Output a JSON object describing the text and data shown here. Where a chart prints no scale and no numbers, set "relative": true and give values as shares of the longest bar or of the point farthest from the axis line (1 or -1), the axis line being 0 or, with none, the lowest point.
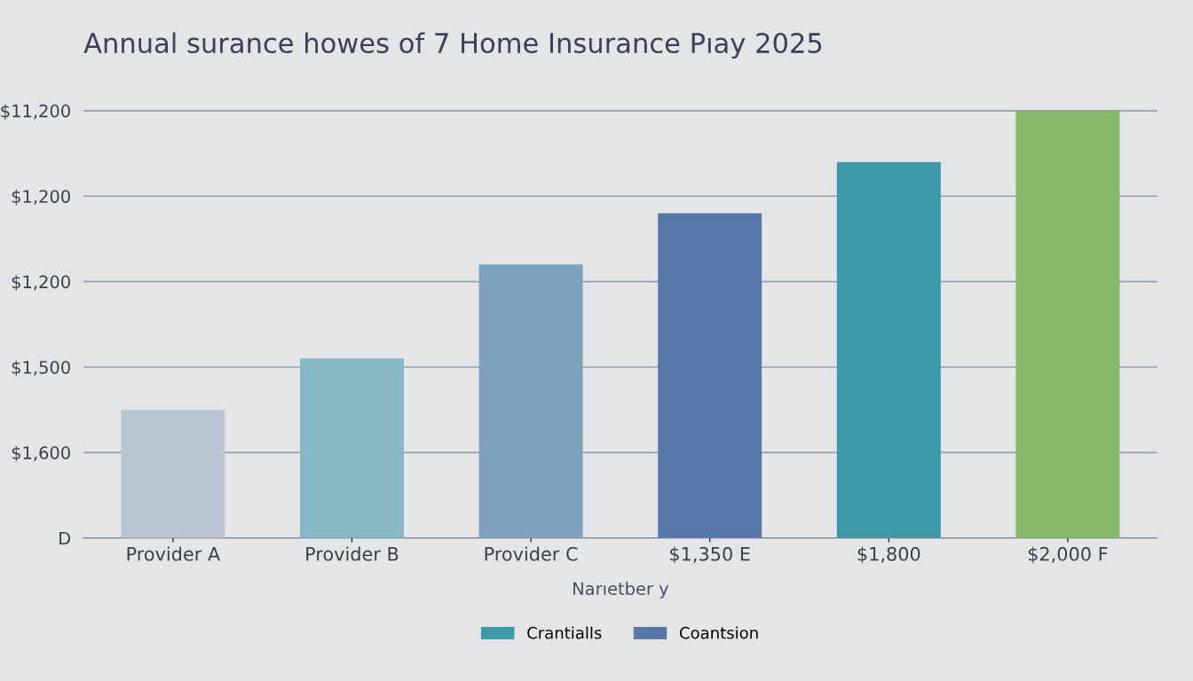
{
  "chart_data": {
    "type": "bar",
    "title": "Annual surance howes of 7 Home Insurance Pıay 2025",
    "xlabel": "Narıetber y",
    "categories": [
      "Provider A",
      "Provider B",
      "Provider C",
      "$1,350 E",
      "$1,800",
      "$2,000 F"
    ],
    "relative": true,
    "series": [
      {
        "colors": [
          "#b9c6d2",
          "#86b8c6",
          "#7ea2bf",
          null,
          null,
          "#88b86a"
        ],
        "values": [
          0.3,
          0.42,
          0.64,
          null,
          null,
          1.0
        ]
      },
      {
        "name": "Crantialls",
        "color": "#3d98a8",
        "values": [
          null,
          null,
          null,
          null,
          0.88,
          null
        ]
      },
      {
        "name": "Coantsion",
        "color": "#5677a8",
        "values": [
          null,
          null,
          null,
          0.76,
          null,
          null
        ]
      }
    ],
    "annotations": [
      "D",
      "$1,600",
      "$1,500",
      "$1,200",
      "$1,200",
      "$11,200"
    ],
    "grid": "y",
    "legend": "bottom"
  }
}
